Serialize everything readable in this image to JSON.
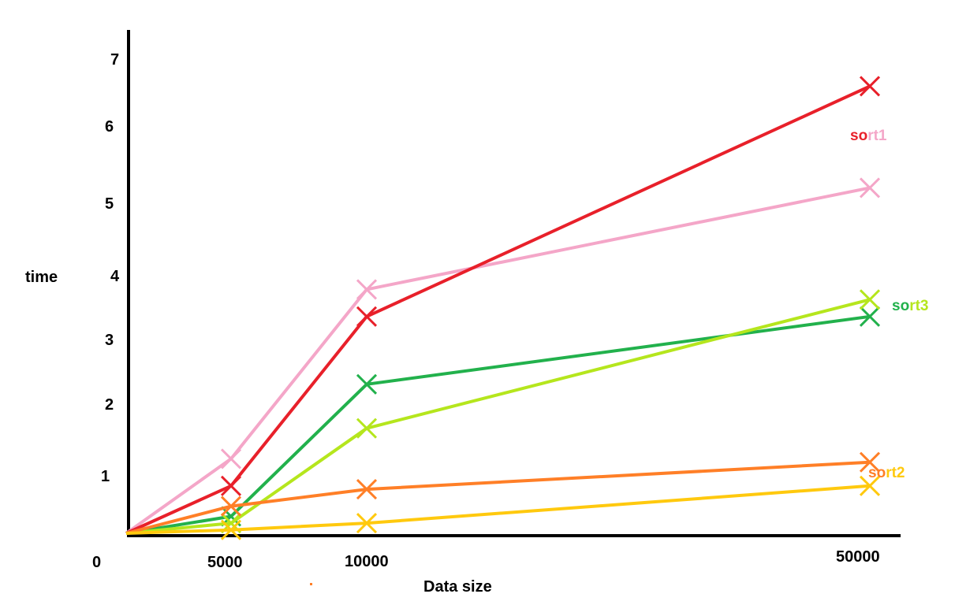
{
  "chart_data": {
    "type": "line",
    "title": "",
    "xlabel": "Data size",
    "ylabel": "time",
    "categories": [
      "0",
      "5000",
      "10000",
      "50000"
    ],
    "x_tick_labels": [
      "0",
      "5000",
      "10000",
      "50000"
    ],
    "y_tick_labels": [
      "1",
      "2",
      "3",
      "4",
      "5",
      "6",
      "7"
    ],
    "ylim": [
      0,
      7.3
    ],
    "grid": false,
    "series": [
      {
        "color": "#f4a6c8",
        "values": [
          0,
          1.1,
          3.6,
          5.1
        ]
      },
      {
        "color": "#e8202a",
        "values": [
          0,
          0.7,
          3.2,
          6.6
        ]
      },
      {
        "color": "#22b14c",
        "values": [
          0,
          0.25,
          2.2,
          3.2
        ]
      },
      {
        "color": "#b5e61d",
        "values": [
          0,
          0.15,
          1.55,
          3.45
        ]
      },
      {
        "color": "#ff7f27",
        "values": [
          0,
          0.4,
          0.65,
          1.05
        ]
      },
      {
        "color": "#ffc90e",
        "values": [
          0,
          0.05,
          0.15,
          0.7
        ]
      }
    ],
    "legend_labels": [
      {
        "text": "sort1",
        "colors": [
          "#e8202a",
          "#f4a6c8"
        ]
      },
      {
        "text": "sort3",
        "colors": [
          "#22b14c",
          "#b5e61d"
        ]
      },
      {
        "text": "sort2",
        "colors": [
          "#ff7f27",
          "#ffc90e"
        ]
      }
    ]
  }
}
